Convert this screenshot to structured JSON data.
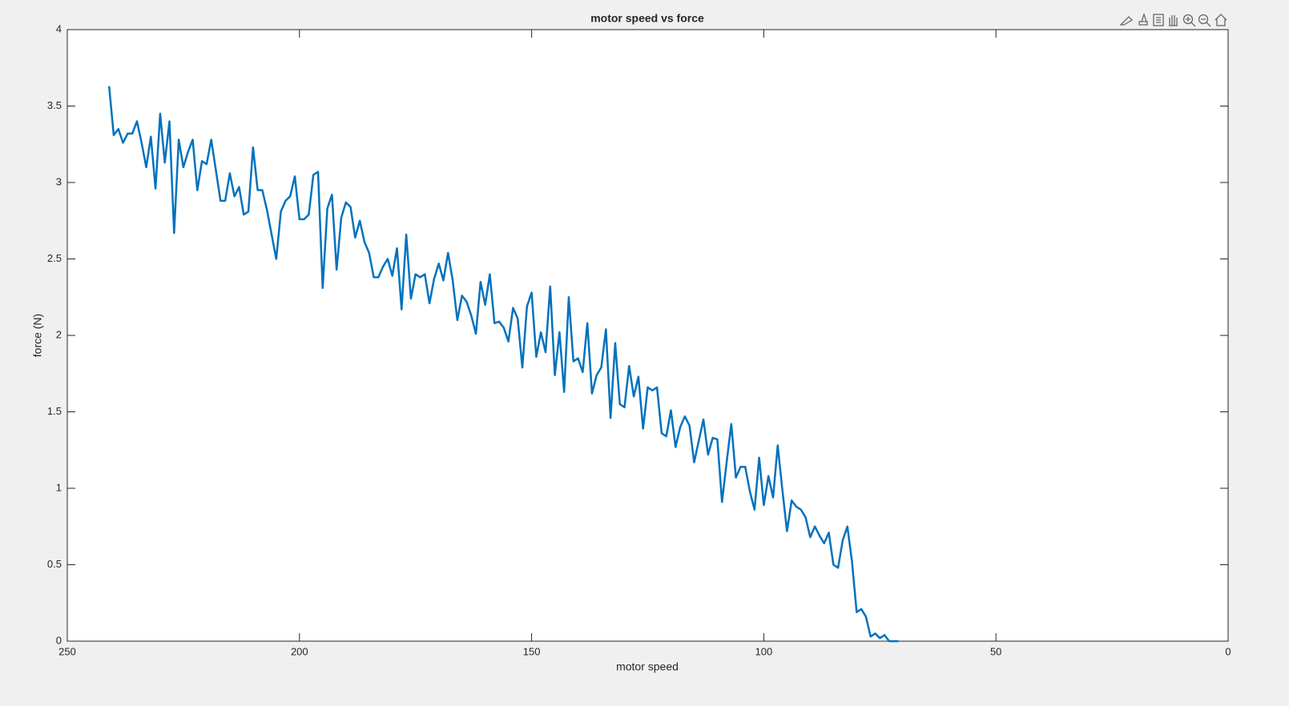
{
  "chart_data": {
    "type": "line",
    "title": "motor speed vs force",
    "x_label": "motor speed",
    "y_label": "force (N)",
    "xlim": [
      250,
      0
    ],
    "xticks": [
      250,
      200,
      150,
      100,
      50,
      0
    ],
    "ylim": [
      0,
      4
    ],
    "yticks": [
      0,
      0.5,
      1,
      1.5,
      2,
      2.5,
      3,
      3.5,
      4
    ],
    "grid": false,
    "x": [
      241,
      240,
      239,
      238,
      237,
      236,
      235,
      234,
      233,
      232,
      231,
      230,
      229,
      228,
      227,
      226,
      225,
      224,
      223,
      222,
      221,
      220,
      219,
      218,
      217,
      216,
      215,
      214,
      213,
      212,
      211,
      210,
      209,
      208,
      207,
      206,
      205,
      204,
      203,
      202,
      201,
      200,
      199,
      198,
      197,
      196,
      195,
      194,
      193,
      192,
      191,
      190,
      189,
      188,
      187,
      186,
      185,
      184,
      183,
      182,
      181,
      180,
      179,
      178,
      177,
      176,
      175,
      174,
      173,
      172,
      171,
      170,
      169,
      168,
      167,
      166,
      165,
      164,
      163,
      162,
      161,
      160,
      159,
      158,
      157,
      156,
      155,
      154,
      153,
      152,
      151,
      150,
      149,
      148,
      147,
      146,
      145,
      144,
      143,
      142,
      141,
      140,
      139,
      138,
      137,
      136,
      135,
      134,
      133,
      132,
      131,
      130,
      129,
      128,
      127,
      126,
      125,
      124,
      123,
      122,
      121,
      120,
      119,
      118,
      117,
      116,
      115,
      114,
      113,
      112,
      111,
      110,
      109,
      108,
      107,
      106,
      105,
      104,
      103,
      102,
      101,
      100,
      99,
      98,
      97,
      96,
      95,
      94,
      93,
      92,
      91,
      90,
      89,
      88,
      87,
      86,
      85,
      84,
      83,
      82,
      81,
      80,
      79,
      78,
      77,
      76,
      75,
      74,
      73,
      72,
      71
    ],
    "series": [
      {
        "name": "force",
        "color": "#0072bd",
        "values": [
          3.63,
          3.31,
          3.35,
          3.26,
          3.32,
          3.32,
          3.4,
          3.26,
          3.1,
          3.3,
          2.96,
          3.45,
          3.13,
          3.4,
          2.67,
          3.28,
          3.1,
          3.2,
          3.28,
          2.95,
          3.14,
          3.12,
          3.28,
          3.08,
          2.88,
          2.88,
          3.06,
          2.91,
          2.97,
          2.79,
          2.81,
          3.23,
          2.95,
          2.95,
          2.82,
          2.66,
          2.5,
          2.81,
          2.88,
          2.91,
          3.04,
          2.76,
          2.76,
          2.79,
          3.05,
          3.07,
          2.31,
          2.83,
          2.92,
          2.43,
          2.77,
          2.87,
          2.84,
          2.64,
          2.75,
          2.61,
          2.54,
          2.38,
          2.38,
          2.45,
          2.5,
          2.39,
          2.57,
          2.17,
          2.66,
          2.24,
          2.4,
          2.38,
          2.4,
          2.21,
          2.37,
          2.47,
          2.36,
          2.54,
          2.36,
          2.1,
          2.26,
          2.22,
          2.13,
          2.01,
          2.35,
          2.2,
          2.4,
          2.08,
          2.09,
          2.05,
          1.96,
          2.18,
          2.11,
          1.79,
          2.19,
          2.28,
          1.86,
          2.02,
          1.89,
          2.32,
          1.74,
          2.02,
          1.63,
          2.25,
          1.83,
          1.85,
          1.76,
          2.08,
          1.62,
          1.74,
          1.79,
          2.04,
          1.46,
          1.95,
          1.55,
          1.53,
          1.8,
          1.6,
          1.73,
          1.39,
          1.66,
          1.64,
          1.66,
          1.36,
          1.34,
          1.51,
          1.27,
          1.4,
          1.47,
          1.41,
          1.17,
          1.31,
          1.45,
          1.22,
          1.33,
          1.32,
          0.91,
          1.17,
          1.42,
          1.07,
          1.14,
          1.14,
          0.98,
          0.86,
          1.2,
          0.89,
          1.08,
          0.94,
          1.28,
          0.99,
          0.72,
          0.92,
          0.88,
          0.86,
          0.81,
          0.68,
          0.75,
          0.69,
          0.64,
          0.71,
          0.5,
          0.48,
          0.66,
          0.75,
          0.52,
          0.19,
          0.21,
          0.16,
          0.03,
          0.05,
          0.02,
          0.04,
          0,
          0,
          0
        ]
      }
    ]
  }
}
